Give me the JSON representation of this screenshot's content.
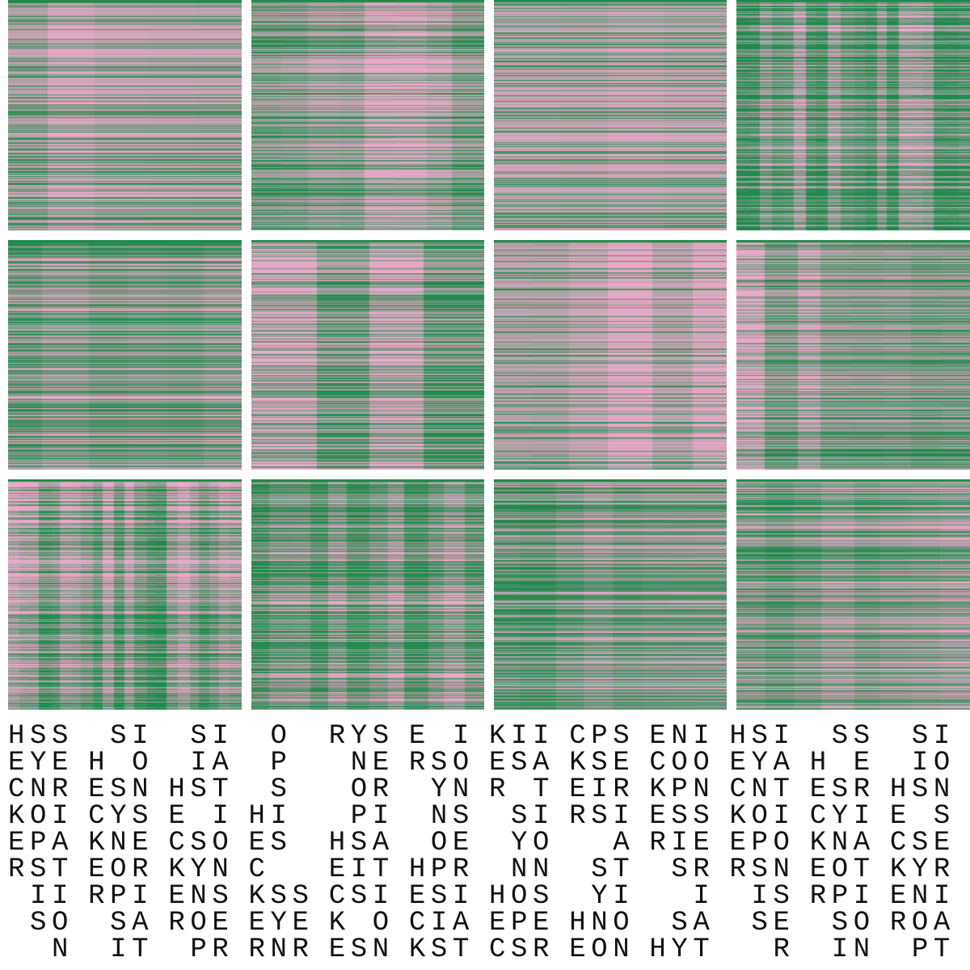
{
  "colors": {
    "pink": "#e9a9c9",
    "green": "#1f8a4c",
    "text": "#111111"
  },
  "text_rows": [
    [
      "HSS",
      " SI",
      " SI",
      " O ",
      "RYS",
      "E I",
      "KII",
      "CPS",
      "ENI",
      "HSI",
      " SS",
      " SI"
    ],
    [
      "EYE",
      "H O",
      " IA",
      " P ",
      " NE",
      "RSO",
      "ESA",
      "KSE",
      "COO",
      "EYA",
      "H E",
      " IO"
    ],
    [
      "CNR",
      "ESN",
      "HST",
      " S ",
      " OR",
      " YN",
      "R T",
      "EIR",
      "KPN",
      "CNT",
      "ESR",
      "HSN"
    ],
    [
      "KOI",
      "CYS",
      "E I",
      "HI ",
      " PI",
      " NS",
      " SI",
      "RSI",
      "ESS",
      "KOI",
      "CYI",
      "E S"
    ],
    [
      "EPA",
      "KNE",
      "CSO",
      "ES ",
      "HSA",
      " OE",
      " YO",
      "  A",
      "RIE",
      "EPO",
      "KNA",
      "CSE"
    ],
    [
      "RST",
      "EOR",
      "KYN",
      "C  ",
      "EIT",
      "HPR",
      " NN",
      " ST",
      " SR",
      "RSN",
      "EOT",
      "KYR"
    ],
    [
      " II",
      "RPI",
      "ENS",
      "KSS",
      "CSI",
      "ESI",
      "HOS",
      " YI",
      "  I",
      " IS",
      "RPI",
      "ENI"
    ],
    [
      " SO",
      " SA",
      "ROE",
      "EYE",
      "K O",
      "CIA",
      "EPE",
      "HNO",
      " SA",
      " SE",
      " SO",
      "ROA"
    ],
    [
      "  N",
      " IT",
      " PR",
      "RNR",
      "ESN",
      "KST",
      "CSR",
      "EON",
      "HYT",
      "  R",
      " IN",
      " PT"
    ]
  ]
}
